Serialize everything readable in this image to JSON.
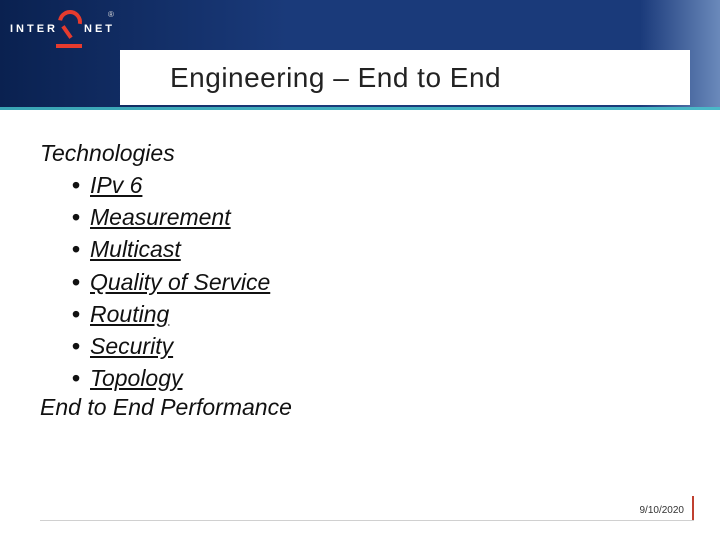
{
  "logo": {
    "left_text": "INTER",
    "right_text": "NET",
    "registered": "®"
  },
  "title": "Engineering – End to End",
  "section1": "Technologies",
  "bullets": [
    "IPv 6",
    "Measurement",
    "Multicast",
    "Quality of Service",
    "Routing",
    "Security",
    "Topology"
  ],
  "section2": "End to End Performance",
  "date": "9/10/2020",
  "colors": {
    "header_dark": "#0a2150",
    "accent_red": "#e63b2e",
    "accent_teal": "#3aa5b5",
    "text": "#111111",
    "background": "#ffffff"
  }
}
